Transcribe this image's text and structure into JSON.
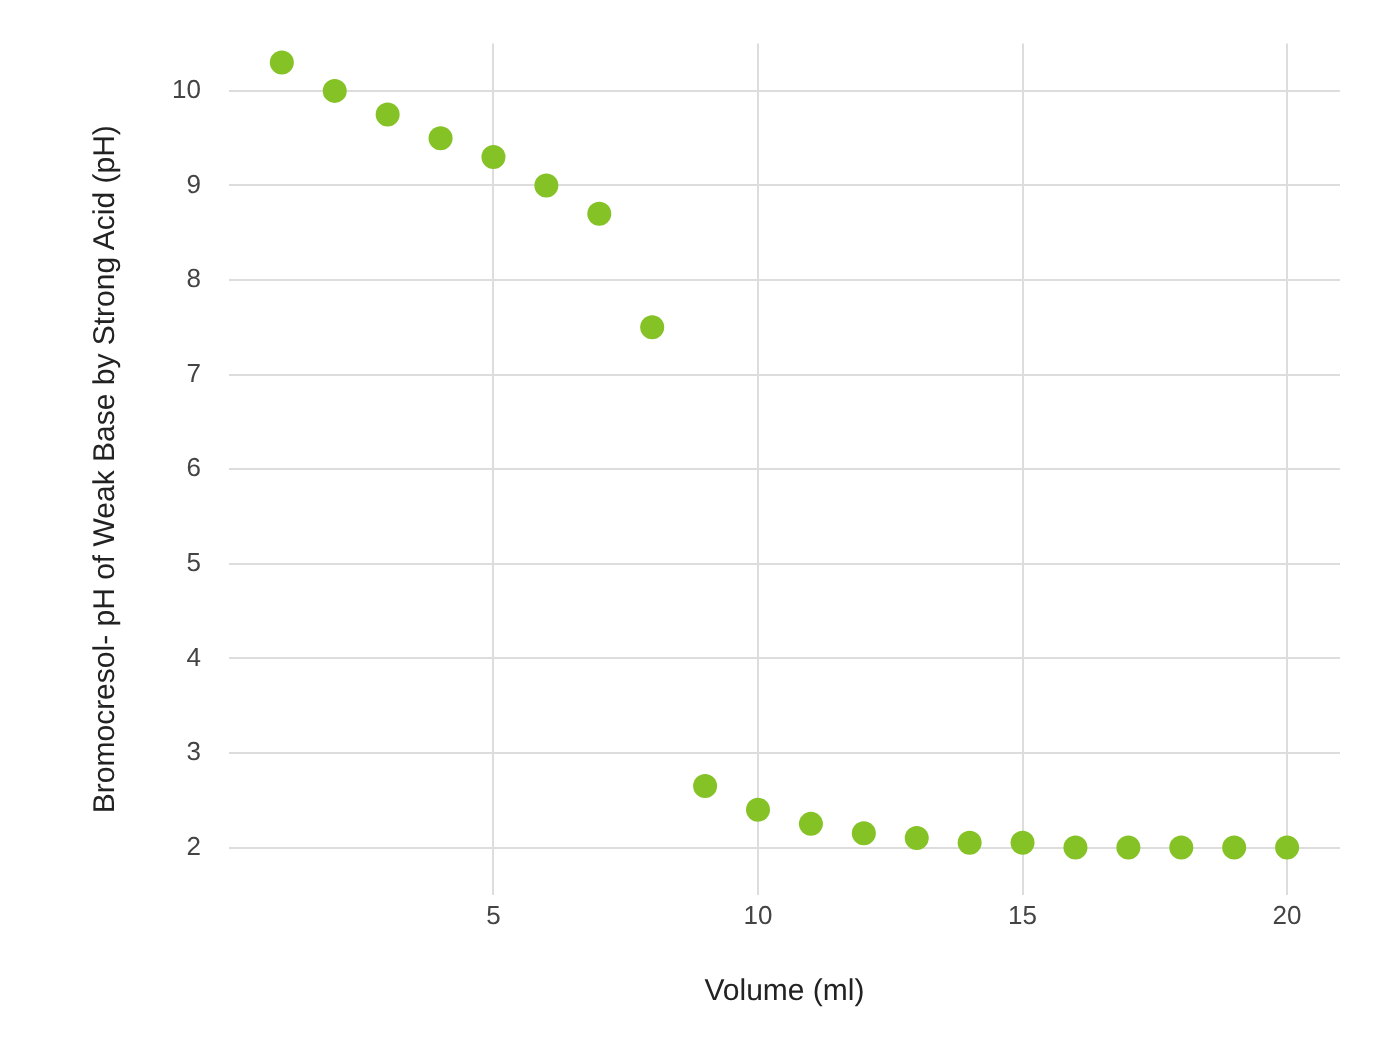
{
  "chart_data": {
    "type": "scatter",
    "xlabel": "Volume (ml)",
    "ylabel": "Bromocresol- pH of Weak Base by Strong Acid (pH)",
    "x": [
      1,
      2,
      3,
      4,
      5,
      6,
      7,
      8,
      9,
      10,
      11,
      12,
      13,
      14,
      15,
      16,
      17,
      18,
      19,
      20
    ],
    "series": [
      {
        "color": "#84c225",
        "values": [
          10.3,
          10.0,
          9.75,
          9.5,
          9.3,
          9.0,
          8.7,
          7.5,
          2.65,
          2.4,
          2.25,
          2.15,
          2.1,
          2.05,
          2.05,
          2.0,
          2.0,
          2.0,
          2.0,
          2.0
        ]
      }
    ],
    "xlim": [
      0,
      21
    ],
    "xticks": [
      5,
      10,
      15,
      20
    ],
    "ylim": [
      1.5,
      10.5
    ],
    "yticks": [
      2,
      3,
      4,
      5,
      6,
      7,
      8,
      9,
      10
    ],
    "grid": true,
    "legend": false,
    "marker": "circle"
  }
}
